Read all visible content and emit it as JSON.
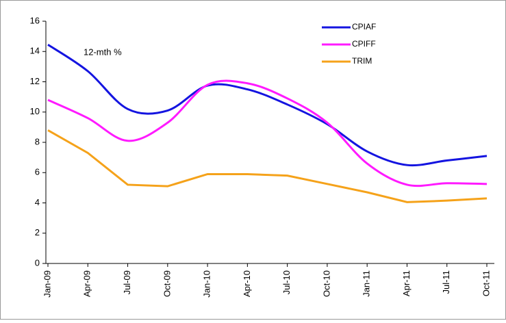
{
  "chart_data": {
    "type": "line",
    "annotation": "12-mth %",
    "categories": [
      "Jan-09",
      "Apr-09",
      "Jul-09",
      "Oct-09",
      "Jan-10",
      "Apr-10",
      "Jul-10",
      "Oct-10",
      "Jan-11",
      "Apr-11",
      "Jul-11",
      "Oct-11"
    ],
    "series": [
      {
        "name": "CPIAF",
        "color": "#1414e0",
        "smooth": true,
        "values": [
          14.45,
          12.7,
          10.2,
          10.1,
          11.75,
          11.5,
          10.5,
          9.2,
          7.4,
          6.5,
          6.8,
          7.1
        ]
      },
      {
        "name": "CPIFF",
        "color": "#ff1aff",
        "smooth": true,
        "values": [
          10.8,
          9.6,
          8.1,
          9.3,
          11.8,
          11.9,
          10.9,
          9.3,
          6.6,
          5.2,
          5.3,
          5.25
        ]
      },
      {
        "name": "TRIM",
        "color": "#f5a21a",
        "smooth": false,
        "values": [
          8.8,
          7.3,
          5.2,
          5.1,
          5.9,
          5.9,
          5.8,
          5.25,
          4.7,
          4.05,
          4.15,
          4.3
        ]
      }
    ],
    "ylim": [
      0,
      16
    ],
    "yticks": [
      0,
      2,
      4,
      6,
      8,
      10,
      12,
      14,
      16
    ],
    "legend": "upper right"
  }
}
